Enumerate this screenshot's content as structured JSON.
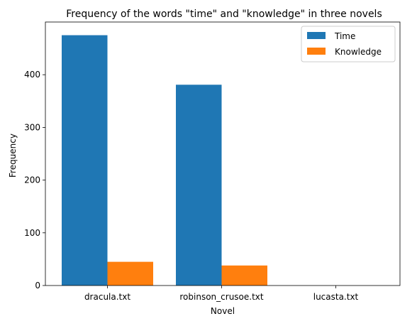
{
  "chart_data": {
    "type": "bar",
    "title": "Frequency of the words \"time\" and \"knowledge\" in three novels",
    "xlabel": "Novel",
    "ylabel": "Frequency",
    "categories": [
      "dracula.txt",
      "robinson_crusoe.txt",
      "lucasta.txt"
    ],
    "series": [
      {
        "name": "Time",
        "values": [
          475,
          381,
          0
        ],
        "color": "#1f77b4"
      },
      {
        "name": "Knowledge",
        "values": [
          45,
          38,
          0
        ],
        "color": "#ff7f0e"
      }
    ],
    "ylim": [
      0,
      500
    ],
    "yticks": [
      0,
      100,
      200,
      300,
      400
    ],
    "grid": false,
    "legend": "top-right"
  }
}
